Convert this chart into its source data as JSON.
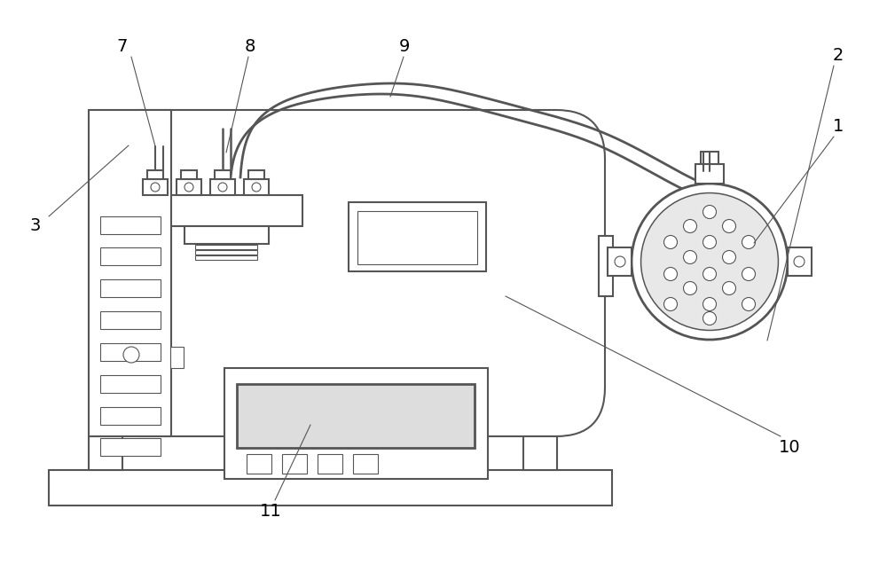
{
  "bg_color": "white",
  "lc": "#555555",
  "lw": 1.5,
  "tlw": 0.8,
  "label_fs": 14,
  "figw": 10.0,
  "figh": 6.54,
  "dpi": 100
}
